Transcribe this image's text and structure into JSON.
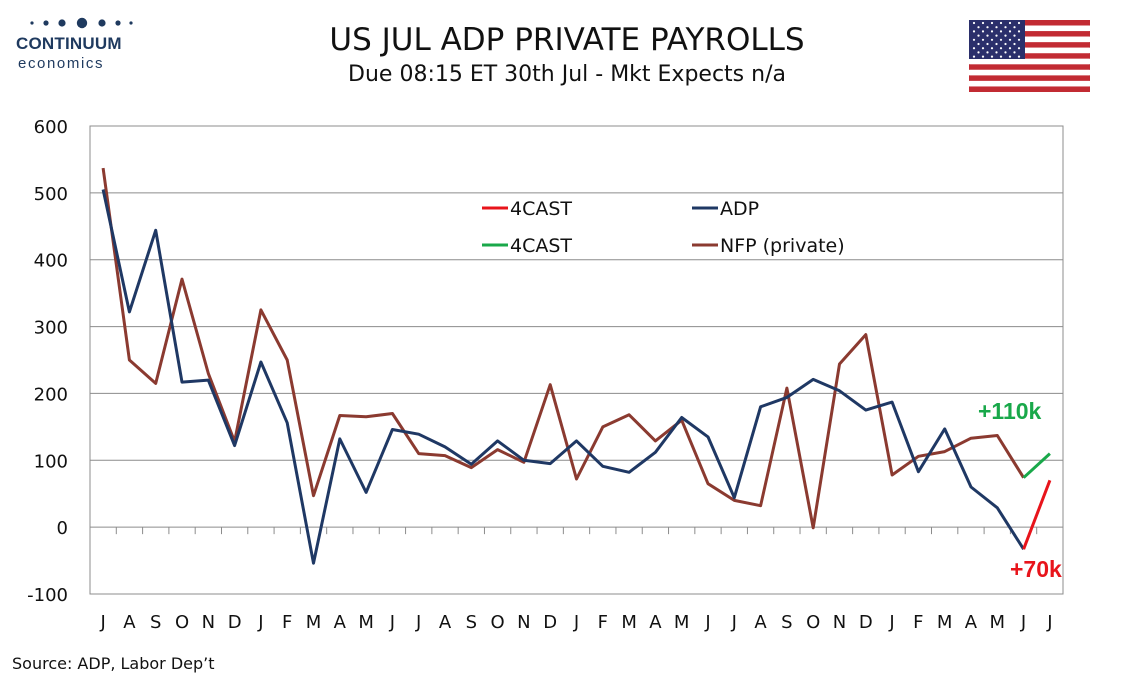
{
  "header": {
    "title": "US JUL ADP PRIVATE PAYROLLS",
    "subtitle": "Due 08:15 ET 30th Jul - Mkt Expects n/a"
  },
  "logo": {
    "brand": "CONTINUUM",
    "sub": "economics"
  },
  "source": "Source: ADP, Labor Dep’t",
  "annotations": {
    "green_label": "+110k",
    "red_label": "+70k"
  },
  "colors": {
    "adp": "#1f3864",
    "nfp": "#8b3a30",
    "forecast_red": "#e8141b",
    "forecast_green": "#19a84a"
  },
  "chart_data": {
    "type": "line",
    "categories": [
      "J",
      "A",
      "S",
      "O",
      "N",
      "D",
      "J",
      "F",
      "M",
      "A",
      "M",
      "J",
      "J",
      "A",
      "S",
      "O",
      "N",
      "D",
      "J",
      "F",
      "M",
      "A",
      "M",
      "J",
      "J",
      "A",
      "S",
      "O",
      "N",
      "D",
      "J",
      "F",
      "M",
      "A",
      "M",
      "J",
      "J"
    ],
    "ylim": [
      -100,
      600
    ],
    "yticks": [
      -100,
      0,
      100,
      200,
      300,
      400,
      500,
      600
    ],
    "grid": true,
    "legend_position": "top-center",
    "legend": [
      "4CAST",
      "ADP",
      "4CAST",
      "NFP (private)"
    ],
    "series": [
      {
        "name": "ADP",
        "values": [
          505,
          322,
          444,
          217,
          220,
          122,
          247,
          156,
          -54,
          132,
          52,
          146,
          139,
          120,
          94,
          129,
          100,
          95,
          129,
          91,
          82,
          112,
          164,
          135,
          44,
          180,
          194,
          221,
          204,
          175,
          187,
          83,
          147,
          60,
          29,
          -33,
          null
        ]
      },
      {
        "name": "NFP (private)",
        "values": [
          537,
          250,
          215,
          371,
          230,
          128,
          325,
          250,
          47,
          167,
          165,
          170,
          110,
          107,
          89,
          116,
          97,
          213,
          72,
          150,
          168,
          129,
          160,
          65,
          40,
          32,
          208,
          -1,
          244,
          288,
          78,
          106,
          113,
          133,
          137,
          74,
          null
        ]
      },
      {
        "name": "4CAST",
        "values": [
          null,
          null,
          null,
          null,
          null,
          null,
          null,
          null,
          null,
          null,
          null,
          null,
          null,
          null,
          null,
          null,
          null,
          null,
          null,
          null,
          null,
          null,
          null,
          null,
          null,
          null,
          null,
          null,
          null,
          null,
          null,
          null,
          null,
          null,
          null,
          -33,
          70
        ]
      },
      {
        "name": "4CAST",
        "values": [
          null,
          null,
          null,
          null,
          null,
          null,
          null,
          null,
          null,
          null,
          null,
          null,
          null,
          null,
          null,
          null,
          null,
          null,
          null,
          null,
          null,
          null,
          null,
          null,
          null,
          null,
          null,
          null,
          null,
          null,
          null,
          null,
          null,
          null,
          null,
          74,
          110
        ]
      }
    ]
  }
}
